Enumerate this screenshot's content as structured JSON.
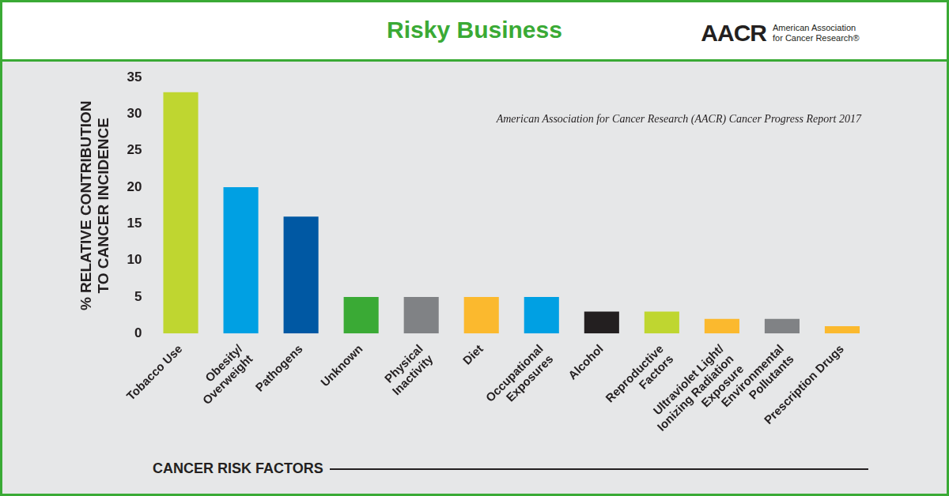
{
  "chart_data": {
    "type": "bar",
    "title": "Risky Business",
    "subtitle": "American Association for Cancer Research (AACR) Cancer Progress Report 2017",
    "annotations": [
      "AACR",
      "American Association for Cancer Research®"
    ],
    "x_label": "CANCER RISK FACTORS",
    "y_label": "% RELATIVE CONTRIBUTION TO CANCER INCIDENCE",
    "categories": [
      "Tobacco Use",
      "Obesity/Overweight",
      "Pathogens",
      "Unknown",
      "Physical Inactivity",
      "Diet",
      "Occupational Exposures",
      "Alcohol",
      "Reproductive Factors",
      "Ultraviolet Light/Ionizing Radiation Exposure",
      "Environmental Pollutants",
      "Prescription Drugs"
    ],
    "values": [
      33,
      20,
      16,
      5,
      5,
      5,
      5,
      3,
      3,
      2,
      2,
      1
    ],
    "colors": [
      "#bfd630",
      "#00a0e3",
      "#0058a3",
      "#3aaa35",
      "#808285",
      "#fbb92e",
      "#00a0e3",
      "#231f20",
      "#bfd630",
      "#fbb92e",
      "#808285",
      "#fbb92e"
    ],
    "ylim": [
      0,
      35
    ],
    "yticks": [
      0,
      5,
      10,
      15,
      20,
      25,
      30,
      35
    ],
    "grid": false
  }
}
